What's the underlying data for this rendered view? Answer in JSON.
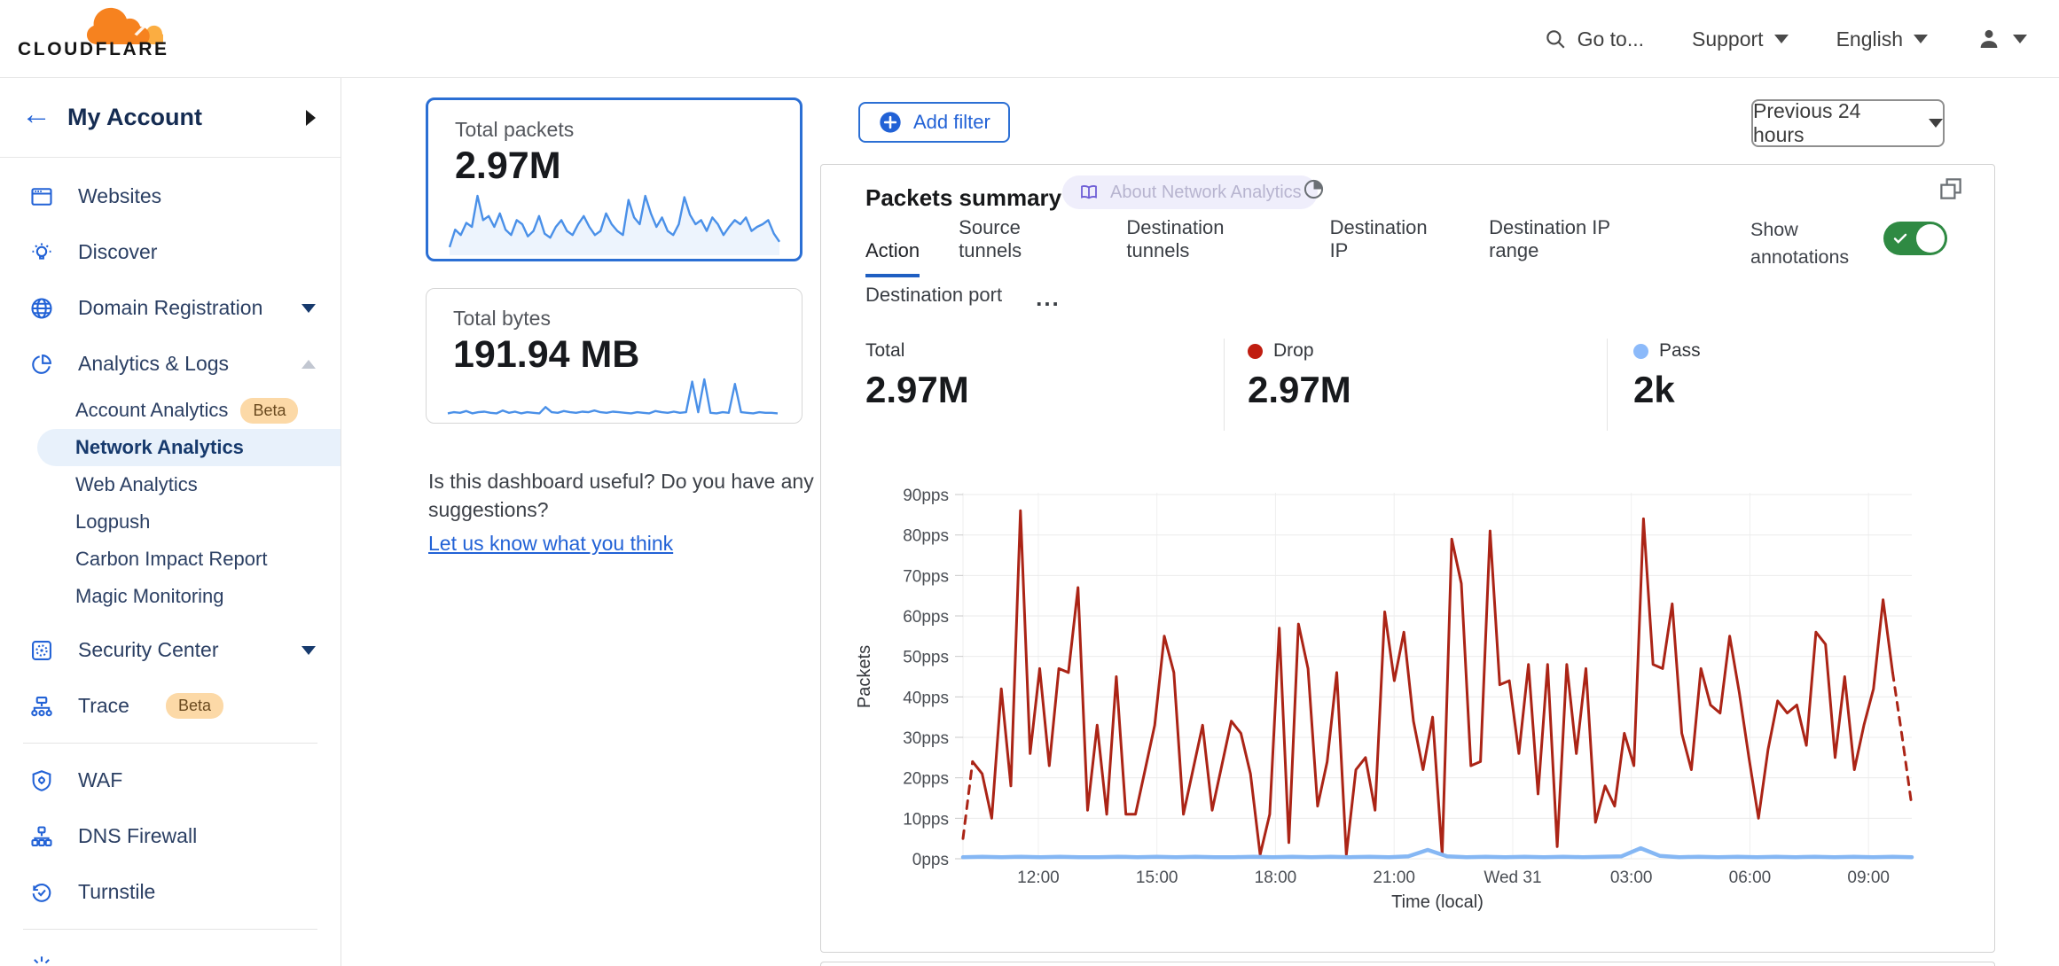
{
  "colors": {
    "accent_blue": "#2262d6",
    "selected_card_border": "#2b6fd4",
    "drop_red": "#ab2416",
    "pass_blue": "#85b7f4",
    "toggle_green": "#2f8a43",
    "spark_blue": "#4a90e8",
    "beta_bg": "#fcd9a7",
    "selected_pill_bg": "#e8f1fb"
  },
  "header": {
    "logo_text": "CLOUDFLARE",
    "goto": "Go to...",
    "support": "Support",
    "language": "English"
  },
  "sidebar": {
    "account_label": "My Account",
    "top_items": [
      {
        "label": "Websites"
      },
      {
        "label": "Discover"
      },
      {
        "label": "Domain Registration"
      },
      {
        "label": "Analytics & Logs"
      }
    ],
    "analytics_sub": [
      {
        "label": "Account Analytics",
        "badge": "Beta"
      },
      {
        "label": "Network Analytics",
        "selected": true
      },
      {
        "label": "Web Analytics"
      },
      {
        "label": "Logpush"
      },
      {
        "label": "Carbon Impact Report"
      },
      {
        "label": "Magic Monitoring"
      }
    ],
    "mid_items": [
      {
        "label": "Security Center"
      },
      {
        "label": "Trace",
        "badge": "Beta"
      }
    ],
    "bottom_items": [
      {
        "label": "WAF"
      },
      {
        "label": "DNS Firewall"
      },
      {
        "label": "Turnstile"
      }
    ]
  },
  "summary_cards": [
    {
      "label": "Total packets",
      "value": "2.97M",
      "selected": true,
      "spark": [
        12,
        38,
        30,
        48,
        42,
        88,
        52,
        58,
        42,
        62,
        38,
        30,
        52,
        46,
        28,
        36,
        58,
        32,
        26,
        42,
        52,
        36,
        30,
        46,
        58,
        42,
        30,
        36,
        62,
        46,
        36,
        30,
        82,
        56,
        46,
        88,
        62,
        42,
        56,
        36,
        30,
        46,
        86,
        60,
        46,
        52,
        36,
        56,
        46,
        30,
        42,
        52,
        46,
        56,
        36,
        42,
        46,
        52,
        32,
        20
      ]
    },
    {
      "label": "Total bytes",
      "value": "191.94 MB",
      "selected": false,
      "spark": [
        7,
        9,
        8,
        11,
        7,
        9,
        10,
        8,
        7,
        12,
        8,
        10,
        7,
        9,
        8,
        7,
        18,
        9,
        8,
        11,
        9,
        8,
        10,
        9,
        12,
        9,
        8,
        10,
        9,
        8,
        7,
        9,
        8,
        7,
        11,
        9,
        8,
        10,
        8,
        9,
        62,
        9,
        66,
        8,
        7,
        9,
        8,
        58,
        9,
        8,
        7,
        9,
        8,
        8,
        7
      ]
    }
  ],
  "feedback": {
    "question": "Is this dashboard useful? Do you have any suggestions?",
    "link": "Let us know what you think"
  },
  "toolbar": {
    "add_filter": "Add filter",
    "time_range": "Previous 24 hours"
  },
  "panel": {
    "title": "Packets summary",
    "badge": "About Network Analytics",
    "tabs": [
      "Action",
      "Source tunnels",
      "Destination tunnels",
      "Destination IP",
      "Destination IP range",
      "Destination port"
    ],
    "active_tab": "Action",
    "more_label": "...",
    "annotations_label": "Show annotations",
    "annotations_on": true,
    "stats": [
      {
        "label": "Total",
        "value": "2.97M",
        "dot": null
      },
      {
        "label": "Drop",
        "value": "2.97M",
        "dot": "#c01d10"
      },
      {
        "label": "Pass",
        "value": "2k",
        "dot": "#8cbafa"
      }
    ]
  },
  "chart_data": {
    "type": "line",
    "title": "Packets summary",
    "xlabel": "Time (local)",
    "ylabel": "Packets",
    "ylim": [
      0,
      90
    ],
    "grid": true,
    "legend_position": "none",
    "y_ticks": [
      "0pps",
      "10pps",
      "20pps",
      "30pps",
      "40pps",
      "50pps",
      "60pps",
      "70pps",
      "80pps",
      "90pps"
    ],
    "x_ticks": [
      "12:00",
      "15:00",
      "18:00",
      "21:00",
      "Wed 31",
      "03:00",
      "06:00",
      "09:00"
    ],
    "layout": {
      "first_tick_frac": 0.0794,
      "tick_step_frac": 0.125
    },
    "series": [
      {
        "name": "Drop",
        "color": "#ab2416",
        "width": 3,
        "dash_start": 1,
        "dash_end": 2,
        "values": [
          5,
          24,
          21,
          10,
          42,
          18,
          86,
          26,
          47,
          23,
          47,
          46,
          67,
          12,
          33,
          11,
          45,
          11,
          11,
          22,
          33,
          55,
          46,
          11,
          22,
          33,
          12,
          23,
          34,
          31,
          21,
          1,
          11,
          57,
          4,
          58,
          47,
          13,
          24,
          46,
          1,
          22,
          25,
          12,
          61,
          44,
          56,
          34,
          22,
          35,
          1,
          79,
          68,
          23,
          24,
          81,
          43,
          44,
          26,
          48,
          16,
          48,
          3,
          48,
          26,
          47,
          9,
          18,
          13,
          31,
          23,
          84,
          48,
          47,
          63,
          31,
          22,
          47,
          38,
          36,
          55,
          41,
          25,
          10,
          27,
          39,
          36,
          38,
          28,
          56,
          53,
          25,
          45,
          22,
          33,
          42,
          64,
          46,
          30,
          13
        ]
      },
      {
        "name": "Pass",
        "color": "#85b7f4",
        "width": 4.5,
        "dash_start": 0,
        "dash_end": 0,
        "values": [
          0.4,
          0.5,
          0.4,
          0.5,
          0.4,
          0.5,
          0.4,
          0.4,
          0.5,
          0.4,
          0.5,
          0.4,
          0.5,
          0.4,
          0.4,
          0.5,
          0.4,
          0.5,
          0.4,
          0.5,
          0.4,
          0.5,
          0.4,
          0.6,
          2.2,
          0.6,
          0.4,
          0.5,
          0.4,
          0.5,
          0.4,
          0.5,
          0.4,
          0.5,
          0.6,
          2.6,
          0.7,
          0.4,
          0.5,
          0.4,
          0.5,
          0.4,
          0.5,
          0.4,
          0.5,
          0.4,
          0.5,
          0.4,
          0.5,
          0.4
        ]
      }
    ]
  }
}
